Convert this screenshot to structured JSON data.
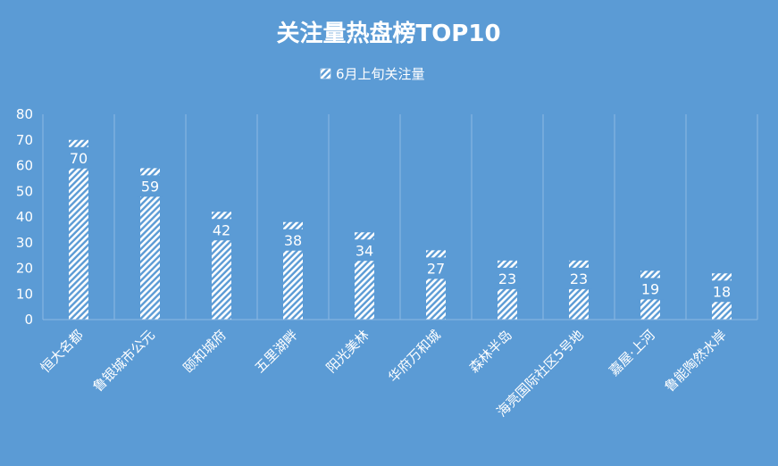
{
  "chart_data": {
    "type": "bar",
    "title": "关注量热盘榜TOP10",
    "categories": [
      "恒大名都",
      "鲁银城市公元",
      "颐和城府",
      "五里湖畔",
      "阳光美林",
      "华府万和城",
      "森林半岛",
      "海亮国际社区5号地",
      "嘉屋·上河",
      "鲁能陶然水岸"
    ],
    "series": [
      {
        "name": "6月上旬关注量",
        "values": [
          70,
          59,
          42,
          38,
          34,
          27,
          23,
          23,
          19,
          18
        ]
      }
    ],
    "ylim": [
      0,
      80
    ],
    "yticks": [
      0,
      10,
      20,
      30,
      40,
      50,
      60,
      70,
      80
    ],
    "grid": "vertical",
    "legend_position": "top",
    "colors": {
      "background": "#5B9BD5",
      "bar": "#ffffff",
      "text": "#ffffff",
      "grid": "#8DB8E3"
    }
  }
}
